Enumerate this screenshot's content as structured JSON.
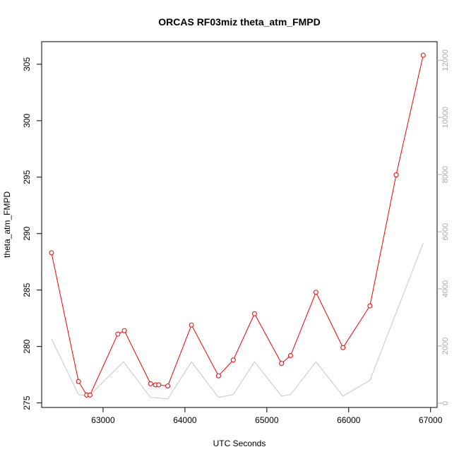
{
  "chart_data": {
    "type": "line",
    "title": "ORCAS RF03miz theta_atm_FMPD",
    "xlabel": "UTC Seconds",
    "ylabel": "theta_atm_FMPD",
    "xlim": [
      62250,
      67080
    ],
    "ylim": [
      274.6,
      307.0
    ],
    "y2lim": [
      -150,
      12650
    ],
    "xticks": [
      63000,
      64000,
      65000,
      66000,
      67000
    ],
    "yticks": [
      275,
      280,
      285,
      290,
      295,
      300,
      305
    ],
    "y2ticks": [
      0,
      2000,
      4000,
      6000,
      8000,
      10000,
      12000
    ],
    "colors": {
      "primary": "#ee0000",
      "secondary": "#c8c8c8"
    },
    "series": [
      {
        "axis": "left",
        "markers": true,
        "x": [
          62370,
          62700,
          62800,
          62840,
          63180,
          63260,
          63580,
          63640,
          63680,
          63790,
          64080,
          64410,
          64590,
          64850,
          65180,
          65290,
          65600,
          65930,
          66260,
          66580,
          66910
        ],
        "y": [
          288.3,
          276.9,
          275.7,
          275.7,
          281.1,
          281.4,
          276.7,
          276.6,
          276.6,
          276.5,
          281.9,
          277.4,
          278.8,
          282.9,
          278.5,
          279.2,
          284.8,
          279.9,
          283.6,
          295.2,
          305.8
        ]
      },
      {
        "axis": "right",
        "markers": false,
        "x": [
          62370,
          62700,
          62830,
          63250,
          63580,
          63790,
          64080,
          64410,
          64590,
          64850,
          65180,
          65290,
          65600,
          65930,
          66260,
          66910
        ],
        "y": [
          2250,
          300,
          250,
          1450,
          200,
          150,
          1450,
          200,
          300,
          1450,
          250,
          300,
          1450,
          250,
          800,
          5600
        ]
      }
    ]
  }
}
